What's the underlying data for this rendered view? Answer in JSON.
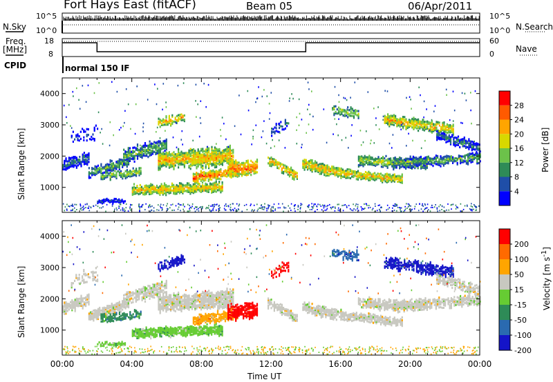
{
  "header": {
    "title": "Fort Hays East (fitACF)",
    "beam": "Beam 05",
    "date": "06/Apr/2011"
  },
  "status_panels": {
    "nsky_label": "N.Sky",
    "nsearch_label": "N.Search",
    "nsky_ticks": [
      "10^5",
      "10^0"
    ],
    "nsearch_ticks": [
      "10^5",
      "10^0"
    ],
    "freq_label": "Freq.",
    "freq_unit": "[MHz]",
    "freq_ticks": [
      "18",
      "8"
    ],
    "nave_label": "Nave",
    "nave_ticks": [
      "60",
      "0"
    ],
    "cpid_label": "CPID",
    "cpid_value": "normal 150 IF"
  },
  "chart_data": [
    {
      "type": "heatmap",
      "panel": "power",
      "ylabel": "Slant Range [km]",
      "yticks": [
        1000,
        2000,
        3000,
        4000
      ],
      "ylim": [
        200,
        4500
      ],
      "xlim_hours": [
        0,
        24
      ],
      "colorbar_label": "Power [dB]",
      "colorbar_ticks": [
        "28",
        "24",
        "20",
        "16",
        "12",
        "8",
        "4"
      ],
      "colors": [
        "#0000ff",
        "#1f4ea8",
        "#2e8b57",
        "#6cc24a",
        "#d8d800",
        "#ffa500",
        "#ff5a00",
        "#ff0000"
      ]
    },
    {
      "type": "heatmap",
      "panel": "velocity",
      "ylabel": "Slant Range [km]",
      "yticks": [
        1000,
        2000,
        3000,
        4000
      ],
      "ylim": [
        200,
        4500
      ],
      "xlim_hours": [
        0,
        24
      ],
      "colorbar_label": "Velocity [m s^-1]",
      "colorbar_ticks": [
        "200",
        "100",
        "50",
        "15",
        "-15",
        "-50",
        "-100",
        "-200"
      ],
      "colors": [
        "#1414c8",
        "#2a6ab0",
        "#2e8b57",
        "#66cc33",
        "#c8c8c0",
        "#ffa500",
        "#ff6a00",
        "#ff0000"
      ]
    }
  ],
  "time_axis": {
    "label": "Time UT",
    "ticks": [
      "00:00",
      "04:00",
      "08:00",
      "12:00",
      "16:00",
      "20:00",
      "00:00"
    ]
  }
}
